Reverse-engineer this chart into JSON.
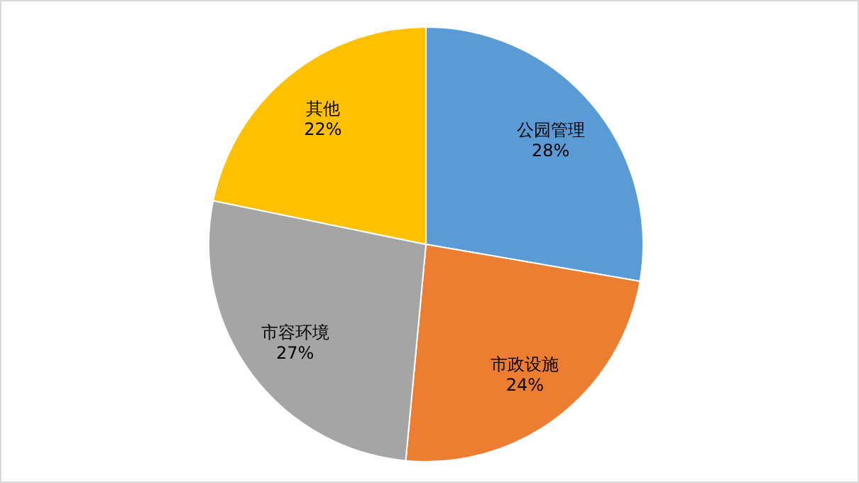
{
  "chart_data": {
    "type": "pie",
    "categories": [
      "公园管理",
      "市政设施",
      "市容环境",
      "其他"
    ],
    "values": [
      28,
      24,
      27,
      22
    ],
    "value_labels": [
      "28%",
      "24%",
      "27%",
      "22%"
    ],
    "colors": [
      "#5b9bd5",
      "#ed7d31",
      "#a5a5a5",
      "#ffc000"
    ]
  }
}
